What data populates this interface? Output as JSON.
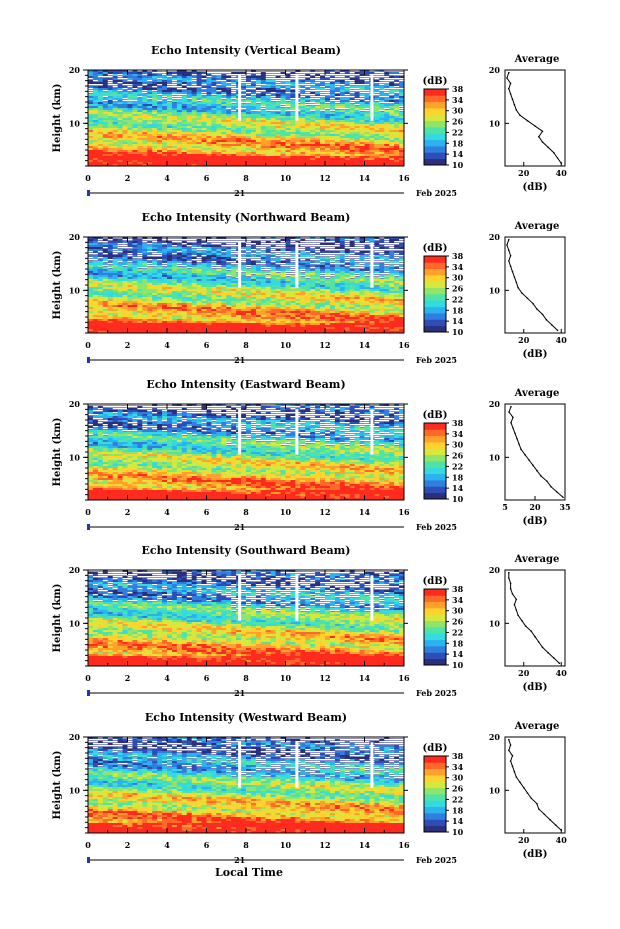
{
  "figure": {
    "x_axis_label": "Local Time",
    "date_label": "Feb 2025",
    "day_label": "21",
    "y_axis_label": "Height (km)",
    "colorbar_unit": "(dB)",
    "average_title": "Average",
    "average_xlabel": "(dB)"
  },
  "colors": {
    "scale": [
      "#2b2f7c",
      "#2e4db7",
      "#2f7fe0",
      "#2bb3f0",
      "#35d9e0",
      "#4fe3a8",
      "#8ee56a",
      "#d6e83d",
      "#ffd22e",
      "#ffa12a",
      "#ff6a2a",
      "#ff2b1e"
    ]
  },
  "chart_data": [
    {
      "type": "heatmap",
      "title": "Echo Intensity (Vertical Beam)",
      "xlabel": "Local Time",
      "ylabel": "Height (km)",
      "xlim": [
        0,
        16
      ],
      "ylim": [
        2,
        20
      ],
      "x_ticks": [
        "0",
        "2",
        "4",
        "6",
        "8",
        "10",
        "12",
        "14",
        "16"
      ],
      "x_tick_labels": [
        "0",
        "2",
        "4",
        "6",
        "8",
        "10",
        "12",
        "14",
        "16"
      ],
      "y_ticks": [
        "10",
        "20"
      ],
      "colorbar": {
        "unit": "(dB)",
        "ticks": [
          "10",
          "14",
          "18",
          "22",
          "26",
          "30",
          "34",
          "38"
        ],
        "range": [
          10,
          38
        ]
      },
      "average": {
        "title": "Average",
        "xlabel": "(dB)",
        "xlim": [
          10,
          42
        ],
        "x_ticks": [
          "20",
          "40"
        ],
        "y_ticks": [
          "10",
          "20"
        ],
        "profile": [
          [
            40,
            2.5
          ],
          [
            38,
            3.5
          ],
          [
            36,
            4.5
          ],
          [
            33,
            5.5
          ],
          [
            30,
            6.5
          ],
          [
            28,
            7.5
          ],
          [
            30,
            8.5
          ],
          [
            26,
            9.5
          ],
          [
            22,
            10.5
          ],
          [
            18,
            11.5
          ],
          [
            16,
            12.5
          ],
          [
            15,
            13.5
          ],
          [
            14,
            14.5
          ],
          [
            13,
            15.5
          ],
          [
            12,
            16.5
          ],
          [
            13,
            17.5
          ],
          [
            11,
            18.5
          ],
          [
            12,
            19.5
          ]
        ]
      }
    },
    {
      "type": "heatmap",
      "title": "Echo Intensity (Northward Beam)",
      "xlabel": "Local Time",
      "ylabel": "Height (km)",
      "xlim": [
        0,
        16
      ],
      "ylim": [
        2,
        20
      ],
      "x_ticks": [
        "0",
        "2",
        "4",
        "6",
        "8",
        "10",
        "12",
        "14",
        "16"
      ],
      "x_tick_labels": [
        "0",
        "2",
        "4",
        "6",
        "8",
        "10",
        "12",
        "14",
        "16"
      ],
      "y_ticks": [
        "10",
        "20"
      ],
      "colorbar": {
        "unit": "(dB)",
        "ticks": [
          "10",
          "14",
          "18",
          "22",
          "26",
          "30",
          "34",
          "38"
        ],
        "range": [
          10,
          38
        ]
      },
      "average": {
        "title": "Average",
        "xlabel": "(dB)",
        "xlim": [
          10,
          42
        ],
        "x_ticks": [
          "20",
          "40"
        ],
        "y_ticks": [
          "10",
          "20"
        ],
        "profile": [
          [
            38,
            2.5
          ],
          [
            35,
            3.5
          ],
          [
            32,
            4.5
          ],
          [
            30,
            5.5
          ],
          [
            27,
            6.5
          ],
          [
            25,
            7.5
          ],
          [
            22,
            8.5
          ],
          [
            19,
            9.5
          ],
          [
            17,
            10.5
          ],
          [
            16,
            11.5
          ],
          [
            15,
            12.5
          ],
          [
            14,
            13.5
          ],
          [
            13,
            14.5
          ],
          [
            12,
            15.5
          ],
          [
            13,
            16.5
          ],
          [
            12,
            17.5
          ],
          [
            11,
            18.5
          ],
          [
            12,
            19.5
          ]
        ]
      }
    },
    {
      "type": "heatmap",
      "title": "Echo Intensity (Eastward Beam)",
      "xlabel": "Local Time",
      "ylabel": "Height (km)",
      "xlim": [
        0,
        16
      ],
      "ylim": [
        2,
        20
      ],
      "x_ticks": [
        "0",
        "2",
        "4",
        "6",
        "8",
        "10",
        "12",
        "14",
        "16"
      ],
      "x_tick_labels": [
        "0",
        "2",
        "4",
        "6",
        "8",
        "10",
        "12",
        "14",
        "16"
      ],
      "y_ticks": [
        "10",
        "20"
      ],
      "colorbar": {
        "unit": "(dB)",
        "ticks": [
          "10",
          "14",
          "18",
          "22",
          "26",
          "30",
          "34",
          "38"
        ],
        "range": [
          10,
          38
        ]
      },
      "average": {
        "title": "Average",
        "xlabel": "(dB)",
        "xlim": [
          5,
          35
        ],
        "x_ticks": [
          "5",
          "20",
          "35"
        ],
        "y_ticks": [
          "10",
          "20"
        ],
        "profile": [
          [
            34,
            2.5
          ],
          [
            31,
            3.5
          ],
          [
            28,
            4.5
          ],
          [
            26,
            5.5
          ],
          [
            23,
            6.5
          ],
          [
            21,
            7.5
          ],
          [
            19,
            8.5
          ],
          [
            17,
            9.5
          ],
          [
            15,
            10.5
          ],
          [
            13,
            11.5
          ],
          [
            12,
            12.5
          ],
          [
            11,
            13.5
          ],
          [
            10,
            14.5
          ],
          [
            9,
            15.5
          ],
          [
            8,
            16.5
          ],
          [
            9,
            17.5
          ],
          [
            7,
            18.5
          ],
          [
            8,
            19.5
          ]
        ]
      }
    },
    {
      "type": "heatmap",
      "title": "Echo Intensity (Southward Beam)",
      "xlabel": "Local Time",
      "ylabel": "Height (km)",
      "xlim": [
        0,
        16
      ],
      "ylim": [
        2,
        20
      ],
      "x_ticks": [
        "0",
        "2",
        "4",
        "6",
        "8",
        "10",
        "12",
        "14",
        "16"
      ],
      "x_tick_labels": [
        "0",
        "2",
        "4",
        "6",
        "8",
        "10",
        "12",
        "14",
        "16"
      ],
      "y_ticks": [
        "10",
        "20"
      ],
      "colorbar": {
        "unit": "(dB)",
        "ticks": [
          "10",
          "14",
          "18",
          "22",
          "26",
          "30",
          "34",
          "38"
        ],
        "range": [
          10,
          38
        ]
      },
      "average": {
        "title": "Average",
        "xlabel": "(dB)",
        "xlim": [
          10,
          42
        ],
        "x_ticks": [
          "20",
          "40"
        ],
        "y_ticks": [
          "10",
          "20"
        ],
        "profile": [
          [
            39,
            2.5
          ],
          [
            36,
            3.5
          ],
          [
            33,
            4.5
          ],
          [
            30,
            5.5
          ],
          [
            28,
            6.5
          ],
          [
            26,
            7.5
          ],
          [
            24,
            8.5
          ],
          [
            21,
            9.5
          ],
          [
            19,
            10.5
          ],
          [
            17,
            11.5
          ],
          [
            16,
            12.5
          ],
          [
            15,
            13.5
          ],
          [
            16,
            14.5
          ],
          [
            14,
            15.5
          ],
          [
            13,
            16.5
          ],
          [
            13,
            17.5
          ],
          [
            12,
            18.5
          ],
          [
            12,
            19.5
          ]
        ]
      }
    },
    {
      "type": "heatmap",
      "title": "Echo Intensity (Westward Beam)",
      "xlabel": "Local Time",
      "ylabel": "Height (km)",
      "xlim": [
        0,
        16
      ],
      "ylim": [
        2,
        20
      ],
      "x_ticks": [
        "0",
        "2",
        "4",
        "6",
        "8",
        "10",
        "12",
        "14",
        "16"
      ],
      "x_tick_labels": [
        "0",
        "2",
        "4",
        "6",
        "8",
        "10",
        "12",
        "14",
        "16"
      ],
      "y_ticks": [
        "10",
        "20"
      ],
      "colorbar": {
        "unit": "(dB)",
        "ticks": [
          "10",
          "14",
          "18",
          "22",
          "26",
          "30",
          "34",
          "38"
        ],
        "range": [
          10,
          38
        ]
      },
      "average": {
        "title": "Average",
        "xlabel": "(dB)",
        "xlim": [
          10,
          42
        ],
        "x_ticks": [
          "20",
          "40"
        ],
        "y_ticks": [
          "10",
          "20"
        ],
        "profile": [
          [
            40,
            2.5
          ],
          [
            37,
            3.5
          ],
          [
            34,
            4.5
          ],
          [
            31,
            5.5
          ],
          [
            28,
            6.5
          ],
          [
            27,
            7.5
          ],
          [
            24,
            8.5
          ],
          [
            22,
            9.5
          ],
          [
            20,
            10.5
          ],
          [
            18,
            11.5
          ],
          [
            16,
            12.5
          ],
          [
            15,
            13.5
          ],
          [
            14,
            14.5
          ],
          [
            13,
            15.5
          ],
          [
            14,
            16.5
          ],
          [
            12,
            17.5
          ],
          [
            13,
            18.5
          ],
          [
            12,
            19.5
          ]
        ]
      }
    }
  ]
}
